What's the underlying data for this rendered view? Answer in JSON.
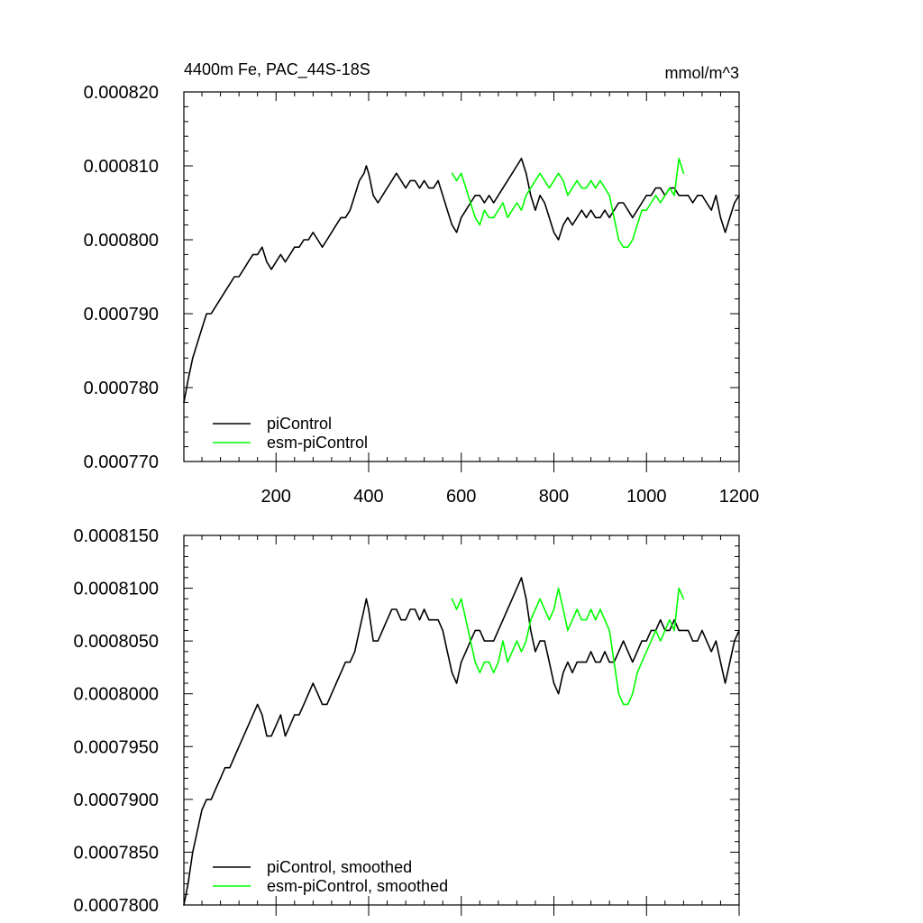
{
  "figure": {
    "title_left": "4400m Fe, PAC_44S-18S",
    "title_right": "mmol/m^3"
  },
  "colors": {
    "piControl": "#000000",
    "esm-piControl": "#00ff00"
  },
  "chart_data": [
    {
      "type": "line",
      "title": "4400m Fe, PAC_44S-18S",
      "units": "mmol/m^3",
      "xlim": [
        1,
        1200
      ],
      "ylim": [
        0.00077,
        0.00082
      ],
      "xticks": [
        200,
        400,
        600,
        800,
        1000,
        1200
      ],
      "xtick_labels": [
        "200",
        "400",
        "600",
        "800",
        "1000",
        "1200"
      ],
      "yticks": [
        0.00077,
        0.00078,
        0.00079,
        0.0008,
        0.00081,
        0.00082
      ],
      "ytick_labels": [
        "0.000770",
        "0.000780",
        "0.000790",
        "0.000800",
        "0.000810",
        "0.000820"
      ],
      "legend_position": "bottom-left",
      "series": [
        {
          "name": "piControl",
          "color": "#000000",
          "x": [
            1,
            10,
            20,
            30,
            40,
            50,
            60,
            70,
            80,
            90,
            100,
            110,
            120,
            130,
            140,
            150,
            160,
            170,
            180,
            190,
            200,
            210,
            220,
            230,
            240,
            250,
            260,
            270,
            280,
            290,
            300,
            310,
            320,
            330,
            340,
            350,
            360,
            370,
            380,
            390,
            395,
            400,
            410,
            420,
            430,
            440,
            450,
            460,
            470,
            480,
            490,
            500,
            510,
            520,
            530,
            540,
            550,
            560,
            570,
            580,
            590,
            600,
            610,
            620,
            630,
            640,
            650,
            660,
            670,
            680,
            690,
            700,
            710,
            720,
            730,
            740,
            750,
            760,
            770,
            780,
            790,
            800,
            810,
            820,
            830,
            840,
            850,
            860,
            870,
            880,
            890,
            900,
            910,
            920,
            930,
            940,
            950,
            960,
            970,
            980,
            990,
            1000,
            1010,
            1020,
            1030,
            1040,
            1050,
            1060,
            1070,
            1080,
            1090,
            1100,
            1110,
            1120,
            1130,
            1140,
            1150,
            1160,
            1170,
            1180,
            1190,
            1200
          ],
          "y": [
            0.000778,
            0.000781,
            0.000784,
            0.000786,
            0.000788,
            0.00079,
            0.00079,
            0.000791,
            0.000792,
            0.000793,
            0.000794,
            0.000795,
            0.000795,
            0.000796,
            0.000797,
            0.000798,
            0.000798,
            0.000799,
            0.000797,
            0.000796,
            0.000797,
            0.000798,
            0.000797,
            0.000798,
            0.000799,
            0.000799,
            0.0008,
            0.0008,
            0.000801,
            0.0008,
            0.000799,
            0.0008,
            0.000801,
            0.000802,
            0.000803,
            0.000803,
            0.000804,
            0.000806,
            0.000808,
            0.000809,
            0.00081,
            0.000809,
            0.000806,
            0.000805,
            0.000806,
            0.000807,
            0.000808,
            0.000809,
            0.000808,
            0.000807,
            0.000808,
            0.000808,
            0.000807,
            0.000808,
            0.000807,
            0.000807,
            0.000808,
            0.000806,
            0.000804,
            0.000802,
            0.000801,
            0.000803,
            0.000804,
            0.000805,
            0.000806,
            0.000806,
            0.000805,
            0.000806,
            0.000805,
            0.000806,
            0.000807,
            0.000808,
            0.000809,
            0.00081,
            0.000811,
            0.000809,
            0.000806,
            0.000804,
            0.000806,
            0.000805,
            0.000803,
            0.000801,
            0.0008,
            0.000802,
            0.000803,
            0.000802,
            0.000803,
            0.000804,
            0.000803,
            0.000804,
            0.000803,
            0.000803,
            0.000804,
            0.000803,
            0.000804,
            0.000805,
            0.000805,
            0.000804,
            0.000803,
            0.000804,
            0.000805,
            0.000806,
            0.000806,
            0.000807,
            0.000807,
            0.000806,
            0.000807,
            0.000807,
            0.000806,
            0.000806,
            0.000806,
            0.000805,
            0.000806,
            0.000806,
            0.000805,
            0.000804,
            0.000806,
            0.000803,
            0.000801,
            0.000803,
            0.000805,
            0.000806
          ]
        },
        {
          "name": "esm-piControl",
          "color": "#00ff00",
          "x": [
            580,
            590,
            600,
            610,
            620,
            630,
            640,
            650,
            660,
            670,
            680,
            690,
            700,
            710,
            720,
            730,
            740,
            750,
            760,
            770,
            780,
            790,
            800,
            810,
            820,
            830,
            840,
            850,
            860,
            870,
            880,
            890,
            900,
            910,
            920,
            930,
            940,
            950,
            960,
            970,
            980,
            990,
            1000,
            1010,
            1020,
            1030,
            1040,
            1050,
            1060,
            1070,
            1080
          ],
          "y": [
            0.000809,
            0.000808,
            0.000809,
            0.000807,
            0.000805,
            0.000803,
            0.000802,
            0.000804,
            0.000803,
            0.000803,
            0.000804,
            0.000805,
            0.000803,
            0.000804,
            0.000805,
            0.000804,
            0.000806,
            0.000807,
            0.000808,
            0.000809,
            0.000808,
            0.000807,
            0.000808,
            0.000809,
            0.000808,
            0.000806,
            0.000807,
            0.000808,
            0.000807,
            0.000807,
            0.000808,
            0.000807,
            0.000808,
            0.000807,
            0.000806,
            0.000803,
            0.0008,
            0.000799,
            0.000799,
            0.0008,
            0.000802,
            0.000804,
            0.000804,
            0.000805,
            0.000806,
            0.000805,
            0.000806,
            0.000807,
            0.000806,
            0.000811,
            0.000809
          ]
        }
      ]
    },
    {
      "type": "line",
      "title": "",
      "units": "",
      "xlim": [
        1,
        1200
      ],
      "ylim": [
        0.00078,
        0.000815
      ],
      "xticks": [
        200,
        400,
        600,
        800,
        1000,
        1200
      ],
      "xtick_labels": [],
      "yticks": [
        0.00078,
        0.000785,
        0.00079,
        0.000795,
        0.0008,
        0.000805,
        0.00081,
        0.000815
      ],
      "ytick_labels": [
        "0.0007800",
        "0.0007850",
        "0.0007900",
        "0.0007950",
        "0.0008000",
        "0.0008050",
        "0.0008100",
        "0.0008150"
      ],
      "legend_position": "bottom-left",
      "series": [
        {
          "name": "piControl, smoothed",
          "color": "#000000",
          "x": [
            1,
            10,
            20,
            30,
            40,
            50,
            60,
            70,
            80,
            90,
            100,
            110,
            120,
            130,
            140,
            150,
            160,
            170,
            180,
            190,
            200,
            210,
            220,
            230,
            240,
            250,
            260,
            270,
            280,
            290,
            300,
            310,
            320,
            330,
            340,
            350,
            360,
            370,
            380,
            390,
            395,
            400,
            410,
            420,
            430,
            440,
            450,
            460,
            470,
            480,
            490,
            500,
            510,
            520,
            530,
            540,
            550,
            560,
            570,
            580,
            590,
            600,
            610,
            620,
            630,
            640,
            650,
            660,
            670,
            680,
            690,
            700,
            710,
            720,
            730,
            740,
            750,
            760,
            770,
            780,
            790,
            800,
            810,
            820,
            830,
            840,
            850,
            860,
            870,
            880,
            890,
            900,
            910,
            920,
            930,
            940,
            950,
            960,
            970,
            980,
            990,
            1000,
            1010,
            1020,
            1030,
            1040,
            1050,
            1060,
            1070,
            1080,
            1090,
            1100,
            1110,
            1120,
            1130,
            1140,
            1150,
            1160,
            1170,
            1180,
            1190,
            1200
          ],
          "y": [
            0.00078,
            0.000782,
            0.000785,
            0.000787,
            0.000789,
            0.00079,
            0.00079,
            0.000791,
            0.000792,
            0.000793,
            0.000793,
            0.000794,
            0.000795,
            0.000796,
            0.000797,
            0.000798,
            0.000799,
            0.000798,
            0.000796,
            0.000796,
            0.000797,
            0.000798,
            0.000796,
            0.000797,
            0.000798,
            0.000798,
            0.000799,
            0.0008,
            0.000801,
            0.0008,
            0.000799,
            0.000799,
            0.0008,
            0.000801,
            0.000802,
            0.000803,
            0.000803,
            0.000804,
            0.000806,
            0.000808,
            0.000809,
            0.000808,
            0.000805,
            0.000805,
            0.000806,
            0.000807,
            0.000808,
            0.000808,
            0.000807,
            0.000807,
            0.000808,
            0.000808,
            0.000807,
            0.000808,
            0.000807,
            0.000807,
            0.000807,
            0.000806,
            0.000804,
            0.000802,
            0.000801,
            0.000803,
            0.000804,
            0.000805,
            0.000806,
            0.000806,
            0.000805,
            0.000805,
            0.000805,
            0.000806,
            0.000807,
            0.000808,
            0.000809,
            0.00081,
            0.000811,
            0.000809,
            0.000806,
            0.000804,
            0.000805,
            0.000805,
            0.000803,
            0.000801,
            0.0008,
            0.000802,
            0.000803,
            0.000802,
            0.000803,
            0.000803,
            0.000803,
            0.000804,
            0.000803,
            0.000803,
            0.000804,
            0.000803,
            0.000803,
            0.000804,
            0.000805,
            0.000804,
            0.000803,
            0.000804,
            0.000805,
            0.000805,
            0.000806,
            0.000806,
            0.000807,
            0.000806,
            0.000806,
            0.000807,
            0.000806,
            0.000806,
            0.000806,
            0.000805,
            0.000805,
            0.000806,
            0.000805,
            0.000804,
            0.000805,
            0.000803,
            0.000801,
            0.000803,
            0.000805,
            0.000806
          ]
        },
        {
          "name": "esm-piControl, smoothed",
          "color": "#00ff00",
          "x": [
            580,
            590,
            600,
            610,
            620,
            630,
            640,
            650,
            660,
            670,
            680,
            690,
            700,
            710,
            720,
            730,
            740,
            750,
            760,
            770,
            780,
            790,
            800,
            810,
            820,
            830,
            840,
            850,
            860,
            870,
            880,
            890,
            900,
            910,
            920,
            930,
            940,
            950,
            960,
            970,
            980,
            990,
            1000,
            1010,
            1020,
            1030,
            1040,
            1050,
            1060,
            1070,
            1080
          ],
          "y": [
            0.000809,
            0.000808,
            0.000809,
            0.000807,
            0.000805,
            0.000803,
            0.000802,
            0.000803,
            0.000803,
            0.000802,
            0.000803,
            0.000805,
            0.000803,
            0.000804,
            0.000805,
            0.000804,
            0.000805,
            0.000807,
            0.000808,
            0.000809,
            0.000808,
            0.000807,
            0.000808,
            0.00081,
            0.000808,
            0.000806,
            0.000807,
            0.000808,
            0.000807,
            0.000807,
            0.000808,
            0.000807,
            0.000808,
            0.000807,
            0.000806,
            0.000803,
            0.0008,
            0.000799,
            0.000799,
            0.0008,
            0.000802,
            0.000803,
            0.000804,
            0.000805,
            0.000806,
            0.000805,
            0.000806,
            0.000807,
            0.000806,
            0.00081,
            0.000809
          ]
        }
      ]
    }
  ]
}
